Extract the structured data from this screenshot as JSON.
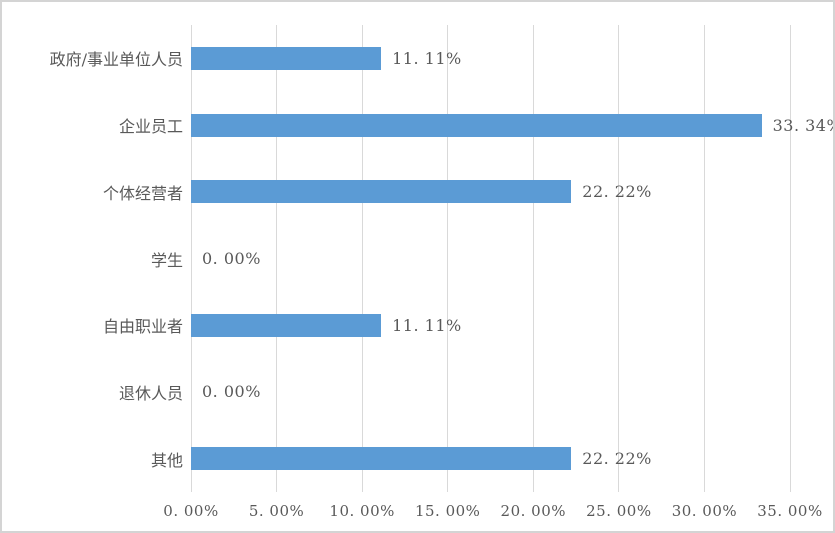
{
  "chart_data": {
    "type": "bar",
    "orientation": "horizontal",
    "title": "",
    "xlabel": "",
    "ylabel": "",
    "categories": [
      "政府/事业单位人员",
      "企业员工",
      "个体经营者",
      "学生",
      "自由职业者",
      "退休人员",
      "其他"
    ],
    "values": [
      11.11,
      33.34,
      22.22,
      0.0,
      11.11,
      0.0,
      22.22
    ],
    "value_labels": [
      "11. 11%",
      "33. 34%",
      "22. 22%",
      "0. 00%",
      "11. 11%",
      "0. 00%",
      "22. 22%"
    ],
    "x_ticks": [
      "0. 00%",
      "5. 00%",
      "10. 00%",
      "15. 00%",
      "20. 00%",
      "25. 00%",
      "30. 00%",
      "35. 00%"
    ],
    "xlim": [
      0,
      35
    ],
    "grid": true,
    "legend": "none",
    "bar_color": "#5b9bd5",
    "gridline_color": "#d9d9d9",
    "text_color": "#595959",
    "frame_color": "#d4d4d4",
    "background_color": "#ffffff"
  }
}
